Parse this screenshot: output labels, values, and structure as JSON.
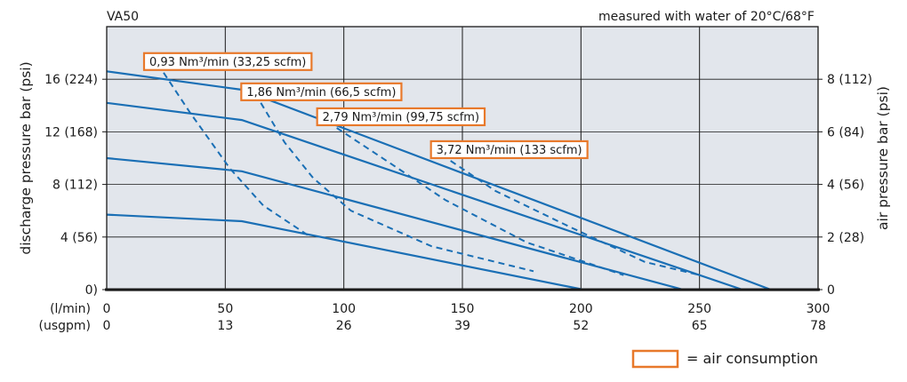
{
  "chart_data": {
    "type": "line",
    "title": "VA50",
    "subtitle": "measured with water of 20°C/68°F",
    "ylabel_left": "discharge pressure bar (psi)",
    "ylabel_right": "air pressure bar (psi)",
    "x_unit_lmin": "(l/min)",
    "x_unit_usgpm": "(usgpm)",
    "x_ticks_lmin": [
      "0",
      "50",
      "100",
      "150",
      "200",
      "250",
      "300"
    ],
    "x_ticks_usgpm": [
      "0",
      "13",
      "26",
      "39",
      "52",
      "65",
      "78"
    ],
    "y_ticks_left": [
      "0)",
      "4 (56)",
      "8 (112)",
      "12 (168)",
      "16 (224)"
    ],
    "y_ticks_right": [
      "0",
      "2 (28)",
      "4 (56)",
      "6 (84)",
      "8 (112)"
    ],
    "xlim": [
      0,
      300
    ],
    "ylim": [
      0,
      20
    ],
    "grid": true,
    "series_solid": [
      {
        "values": [
          [
            0,
            5.7
          ],
          [
            57,
            5.2
          ],
          [
            201,
            0
          ]
        ]
      },
      {
        "values": [
          [
            0,
            10.0
          ],
          [
            57,
            9.0
          ],
          [
            243,
            0
          ]
        ]
      },
      {
        "values": [
          [
            0,
            14.2
          ],
          [
            57,
            12.9
          ],
          [
            268,
            0
          ]
        ]
      },
      {
        "values": [
          [
            0,
            16.6
          ],
          [
            57,
            15.2
          ],
          [
            280,
            0
          ]
        ]
      }
    ],
    "series_dashed": [
      {
        "values": [
          [
            24,
            16.5
          ],
          [
            35,
            13.5
          ],
          [
            52,
            9.2
          ],
          [
            66,
            6.4
          ],
          [
            86,
            4.0
          ]
        ]
      },
      {
        "values": [
          [
            65,
            14.2
          ],
          [
            75,
            11.2
          ],
          [
            87,
            8.5
          ],
          [
            103,
            6.0
          ],
          [
            137,
            3.3
          ],
          [
            180,
            1.4
          ]
        ]
      },
      {
        "values": [
          [
            97,
            12.3
          ],
          [
            118,
            9.8
          ],
          [
            143,
            6.8
          ],
          [
            177,
            3.6
          ],
          [
            218,
            1.1
          ]
        ]
      },
      {
        "values": [
          [
            145,
            9.8
          ],
          [
            164,
            7.5
          ],
          [
            195,
            4.8
          ],
          [
            227,
            2.1
          ],
          [
            250,
            1.1
          ]
        ]
      }
    ],
    "annotations": [
      {
        "text": "0,93 Nm³/min (33,25 scfm)",
        "x": 24,
        "y": 16.5
      },
      {
        "text": "1,86 Nm³/min (66,5 scfm)",
        "x": 65,
        "y": 14.2
      },
      {
        "text": "2,79 Nm³/min (99,75 scfm)",
        "x": 97,
        "y": 12.3
      },
      {
        "text": "3,72 Nm³/min (133 scfm)",
        "x": 145,
        "y": 9.8
      }
    ],
    "legend": {
      "text": "= air consumption",
      "placement": "bottom-right"
    },
    "colors": {
      "line": "#1a6fb5",
      "box": "#e8792b",
      "plot_bg": "#e2e6ec",
      "grid": "#1a1a1a"
    }
  }
}
